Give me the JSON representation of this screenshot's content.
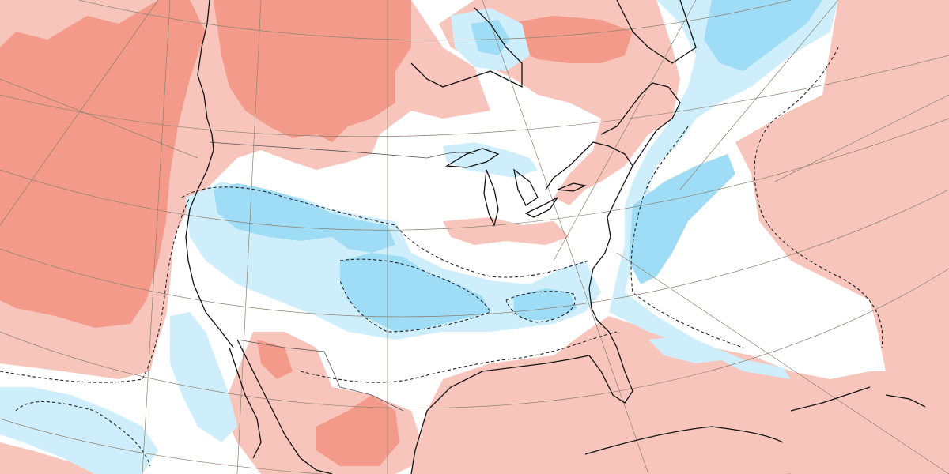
{
  "map": {
    "type": "anomaly-map",
    "projection": "conic",
    "region": "North America",
    "colors": {
      "background": "#ffffff",
      "warm_strong": "#f49a8a",
      "warm": "#f8c5bd",
      "cool": "#cfeefb",
      "cool_strong": "#9fdcf6",
      "contour": "#222222",
      "coastline": "#111111",
      "graticule": "#8b8270",
      "borders": "#555555"
    },
    "contours": {
      "style": "dashed"
    },
    "graticule": {
      "visible": true
    }
  }
}
